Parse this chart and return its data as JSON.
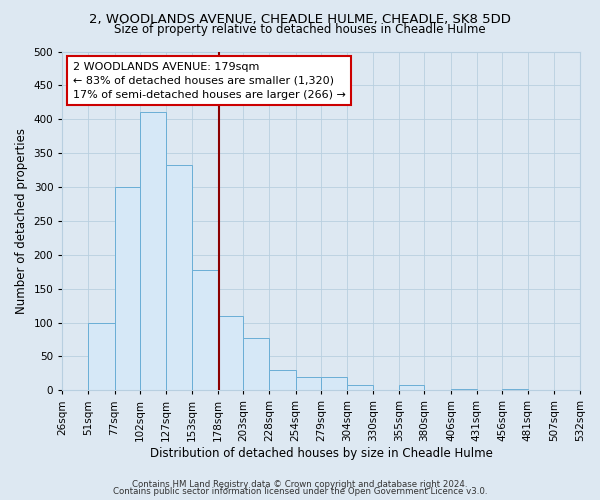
{
  "title_line1": "2, WOODLANDS AVENUE, CHEADLE HULME, CHEADLE, SK8 5DD",
  "title_line2": "Size of property relative to detached houses in Cheadle Hulme",
  "xlabel": "Distribution of detached houses by size in Cheadle Hulme",
  "ylabel": "Number of detached properties",
  "bin_edges": [
    26,
    51,
    77,
    102,
    127,
    153,
    178,
    203,
    228,
    254,
    279,
    304,
    330,
    355,
    380,
    406,
    431,
    456,
    481,
    507,
    532
  ],
  "bar_heights": [
    0,
    100,
    300,
    410,
    333,
    178,
    110,
    77,
    30,
    20,
    20,
    8,
    0,
    8,
    0,
    2,
    0,
    2,
    0,
    0
  ],
  "bar_facecolor": "#d6e8f7",
  "bar_edgecolor": "#6aaed6",
  "property_size": 179,
  "vline_color": "#8b0000",
  "ann_line1": "2 WOODLANDS AVENUE: 179sqm",
  "ann_line2": "← 83% of detached houses are smaller (1,320)",
  "ann_line3": "17% of semi-detached houses are larger (266) →",
  "annotation_box_edgecolor": "#cc0000",
  "annotation_box_facecolor": "#ffffff",
  "ylim": [
    0,
    500
  ],
  "yticks": [
    0,
    50,
    100,
    150,
    200,
    250,
    300,
    350,
    400,
    450,
    500
  ],
  "footer_line1": "Contains HM Land Registry data © Crown copyright and database right 2024.",
  "footer_line2": "Contains public sector information licensed under the Open Government Licence v3.0.",
  "background_color": "#dde8f2",
  "grid_color": "#b8cfe0",
  "title1_fontsize": 9.5,
  "title2_fontsize": 8.5,
  "axis_label_fontsize": 8.5,
  "tick_fontsize": 7.5,
  "ann_fontsize": 8,
  "footer_fontsize": 6.2
}
